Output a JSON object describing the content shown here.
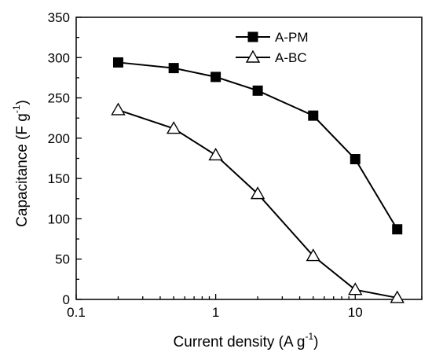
{
  "chart_data": {
    "type": "line",
    "title": "",
    "xlabel": "Current density (A g",
    "xlabel_sup": "-1",
    "xlabel_end": ")",
    "ylabel": "Capacitance (F g",
    "ylabel_sup": "-1",
    "ylabel_end": ")",
    "xscale": "log",
    "xlim": [
      0.1,
      30
    ],
    "ylim": [
      0,
      350
    ],
    "xticks": [
      {
        "value": 0.1,
        "label": "0.1"
      },
      {
        "value": 1,
        "label": "1"
      },
      {
        "value": 10,
        "label": "10"
      }
    ],
    "yticks": [
      {
        "value": 0,
        "label": "0"
      },
      {
        "value": 50,
        "label": "50"
      },
      {
        "value": 100,
        "label": "100"
      },
      {
        "value": 150,
        "label": "150"
      },
      {
        "value": 200,
        "label": "200"
      },
      {
        "value": 250,
        "label": "250"
      },
      {
        "value": 300,
        "label": "300"
      },
      {
        "value": 350,
        "label": "350"
      }
    ],
    "grid": false,
    "legend_position": "top-right",
    "series": [
      {
        "name": "A-PM",
        "marker": "filled-square",
        "color": "#000000",
        "x": [
          0.2,
          0.5,
          1,
          2,
          5,
          10,
          20
        ],
        "y": [
          294,
          287,
          276,
          259,
          228,
          174,
          87
        ]
      },
      {
        "name": "A-BC",
        "marker": "open-triangle",
        "color": "#000000",
        "x": [
          0.2,
          0.5,
          1,
          2,
          5,
          10,
          20
        ],
        "y": [
          235,
          212,
          179,
          131,
          54,
          12,
          2
        ]
      }
    ]
  }
}
